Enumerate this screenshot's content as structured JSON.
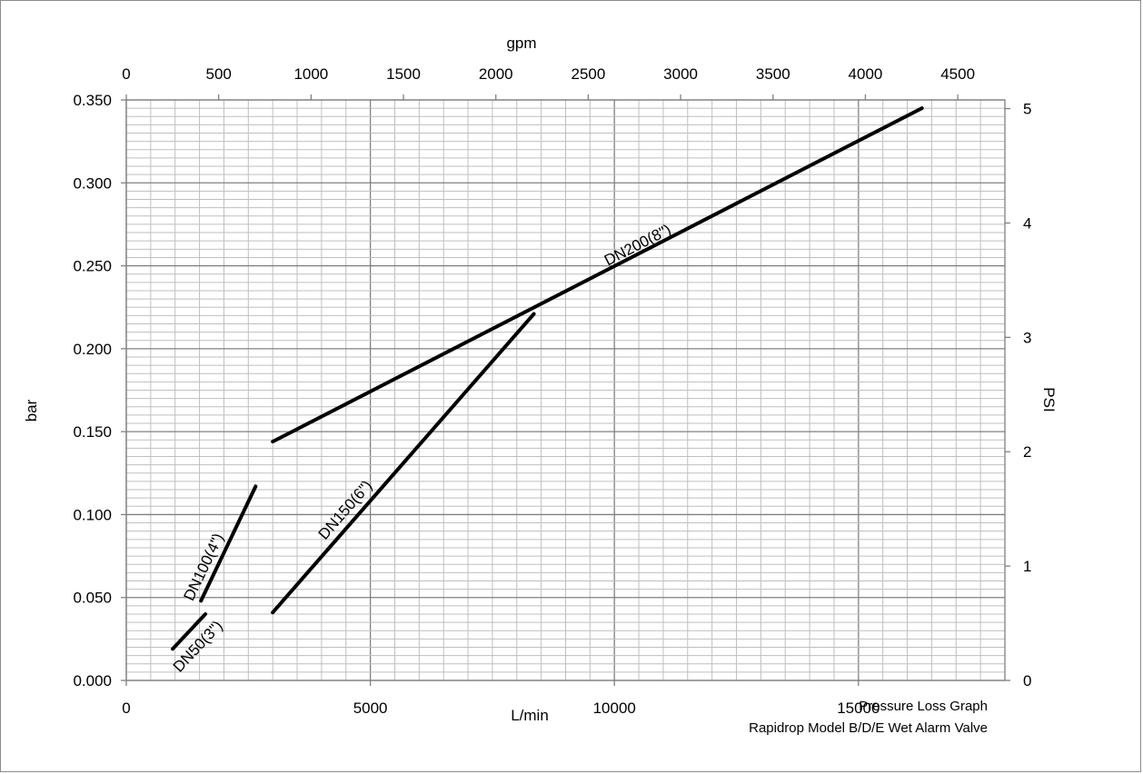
{
  "chart_data": {
    "type": "line",
    "title": "Pressure Loss Graph",
    "subtitle": "Rapidrop Model B/D/E Wet Alarm Valve",
    "xlabel": "L/min",
    "ylabel": "bar",
    "x2label": "gpm",
    "y2label": "PSI",
    "xlim": [
      0,
      18000
    ],
    "ylim": [
      0,
      0.35
    ],
    "x2lim": [
      0,
      4755
    ],
    "y2lim": [
      0,
      5.076
    ],
    "x_ticks": [
      "0",
      "5000",
      "10000",
      "15000"
    ],
    "y_ticks": [
      "0.000",
      "0.050",
      "0.100",
      "0.150",
      "0.200",
      "0.250",
      "0.300",
      "0.350"
    ],
    "x2_ticks": [
      "0",
      "500",
      "1000",
      "1500",
      "2000",
      "2500",
      "3000",
      "3500",
      "4000",
      "4500"
    ],
    "y2_ticks": [
      "0",
      "1",
      "2",
      "3",
      "4",
      "5"
    ],
    "grid": true,
    "legend": "inline labels on lines",
    "series": [
      {
        "name": "DN50(3\")",
        "x": [
          950,
          1620
        ],
        "y": [
          0.019,
          0.04
        ]
      },
      {
        "name": "DN100(4\")",
        "x": [
          1530,
          2650
        ],
        "y": [
          0.048,
          0.117
        ]
      },
      {
        "name": "DN150(6\")",
        "x": [
          3000,
          8350
        ],
        "y": [
          0.041,
          0.221
        ]
      },
      {
        "name": "DN200(8\")",
        "x": [
          3000,
          16300
        ],
        "y": [
          0.144,
          0.345
        ]
      }
    ],
    "colors": {
      "line": "#000000",
      "grid_major": "#808080",
      "grid_minor": "#bfbfbf"
    }
  }
}
